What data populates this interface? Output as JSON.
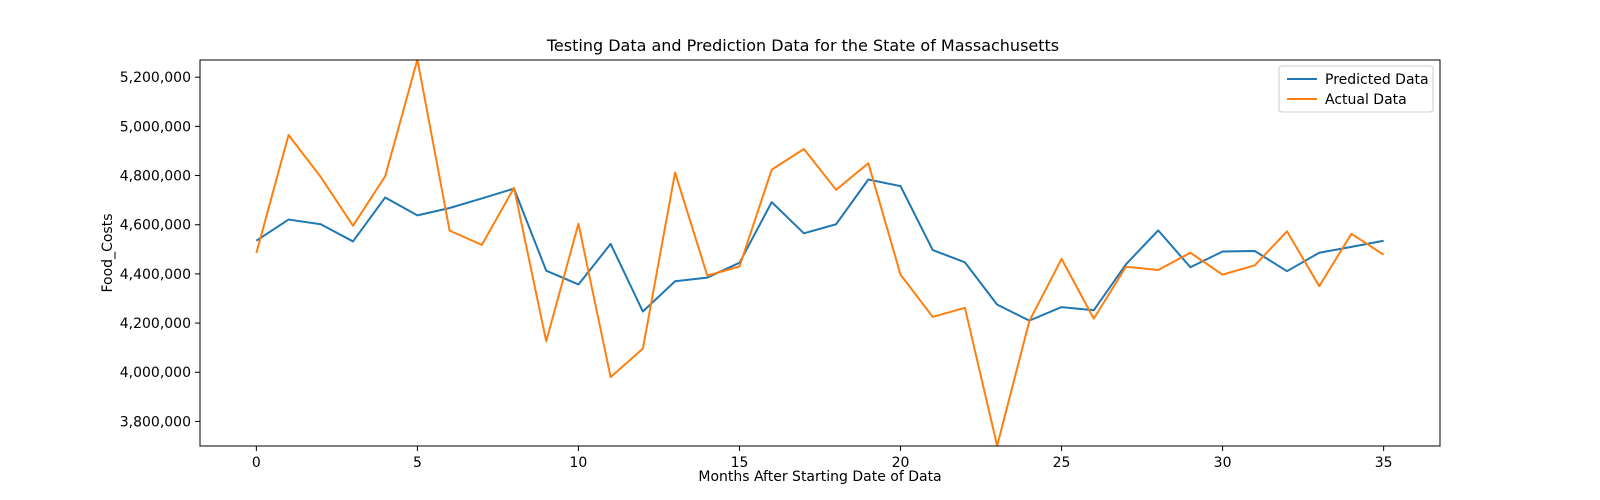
{
  "chart_data": {
    "type": "line",
    "title": "Testing Data and Prediction Data for the State of Massachusetts",
    "xlabel": "Months After Starting Date of Data",
    "ylabel": "Food_Costs",
    "xlim": [
      -1.75,
      36.75
    ],
    "ylim": [
      3700000,
      5270000
    ],
    "xticks": [
      0,
      5,
      10,
      15,
      20,
      25,
      30,
      35
    ],
    "yticks": [
      3800000,
      4000000,
      4200000,
      4400000,
      4600000,
      4800000,
      5000000,
      5200000
    ],
    "ytick_labels": [
      "3,800,000",
      "4,000,000",
      "4,200,000",
      "4,400,000",
      "4,600,000",
      "4,800,000",
      "5,000,000",
      "5,200,000"
    ],
    "grid": false,
    "legend_position": "top-right",
    "x": [
      0,
      1,
      2,
      3,
      4,
      5,
      6,
      7,
      8,
      9,
      10,
      11,
      12,
      13,
      14,
      15,
      16,
      17,
      18,
      19,
      20,
      21,
      22,
      23,
      24,
      25,
      26,
      27,
      28,
      29,
      30,
      31,
      32,
      33,
      34,
      35
    ],
    "series": [
      {
        "name": "Predicted Data",
        "color": "#1f77b4",
        "values": [
          4535000,
          4621000,
          4602000,
          4532000,
          4711000,
          4638000,
          4668000,
          4707000,
          4747000,
          4413000,
          4357000,
          4522000,
          4247000,
          4370000,
          4385000,
          4445000,
          4692000,
          4565000,
          4602000,
          4784000,
          4757000,
          4497000,
          4447000,
          4275000,
          4210000,
          4265000,
          4252000,
          4439000,
          4577000,
          4427000,
          4491000,
          4493000,
          4411000,
          4486000,
          4510000,
          4535000
        ]
      },
      {
        "name": "Actual Data",
        "color": "#ff7f0e",
        "values": [
          4485000,
          4965000,
          4794000,
          4596000,
          4797000,
          5272000,
          4576000,
          4518000,
          4750000,
          4126000,
          4604000,
          3980000,
          4096000,
          4812000,
          4393000,
          4430000,
          4824000,
          4908000,
          4742000,
          4850000,
          4397000,
          4225000,
          4262000,
          3701000,
          4208000,
          4461000,
          4218000,
          4429000,
          4416000,
          4486000,
          4397000,
          4435000,
          4573000,
          4350000,
          4563000,
          4478000
        ]
      }
    ]
  }
}
